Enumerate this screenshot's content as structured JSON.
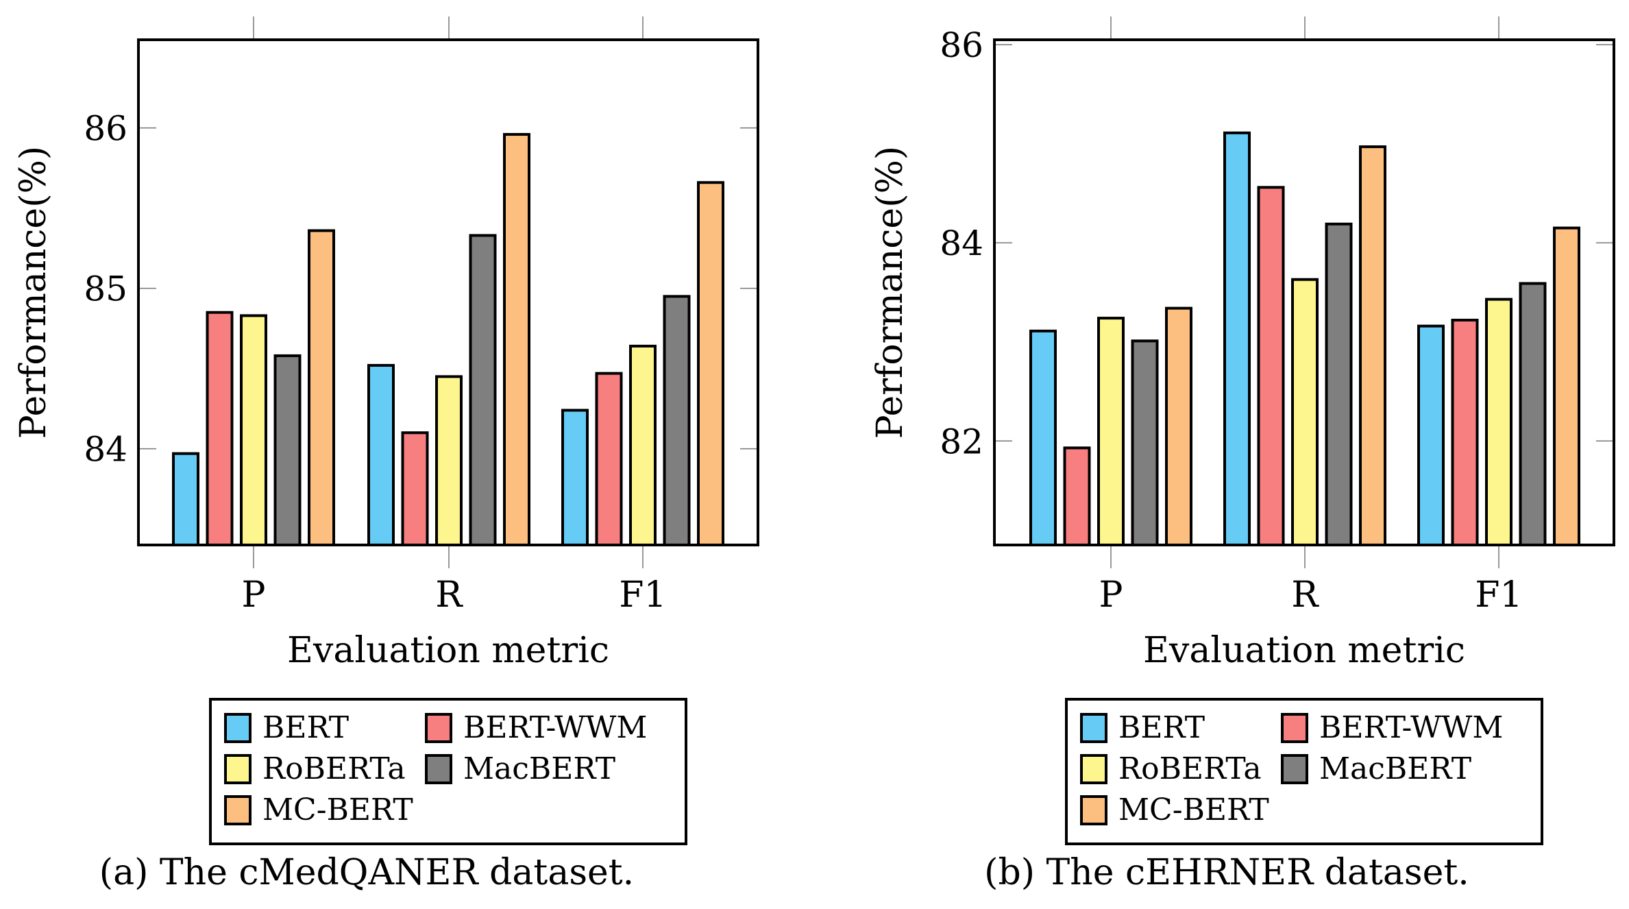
{
  "series_colors": {
    "BERT": "#66CCF5",
    "BERT-WWM": "#F77F80",
    "RoBERTa": "#FDF58E",
    "MacBERT": "#7F7F7F",
    "MC-BERT": "#FDBF80"
  },
  "chart_data": [
    {
      "type": "bar",
      "caption": "(a) The cMedQANER dataset.",
      "xlabel": "Evaluation metric",
      "ylabel": "Performance(%)",
      "categories": [
        "P",
        "R",
        "F1"
      ],
      "ylim": [
        83.4,
        86.55
      ],
      "yticks": [
        84,
        85,
        86
      ],
      "legend": [
        "BERT",
        "BERT-WWM",
        "RoBERTa",
        "MacBERT",
        "MC-BERT"
      ],
      "series": [
        {
          "name": "BERT",
          "values": [
            83.97,
            84.52,
            84.24
          ]
        },
        {
          "name": "BERT-WWM",
          "values": [
            84.85,
            84.1,
            84.47
          ]
        },
        {
          "name": "RoBERTa",
          "values": [
            84.83,
            84.45,
            84.64
          ]
        },
        {
          "name": "MacBERT",
          "values": [
            84.58,
            85.33,
            84.95
          ]
        },
        {
          "name": "MC-BERT",
          "values": [
            85.36,
            85.96,
            85.66
          ]
        }
      ]
    },
    {
      "type": "bar",
      "caption": "(b) The cEHRNER dataset.",
      "xlabel": "Evaluation metric",
      "ylabel": "Performance(%)",
      "categories": [
        "P",
        "R",
        "F1"
      ],
      "ylim": [
        80.95,
        86.05
      ],
      "yticks": [
        82,
        84,
        86
      ],
      "legend": [
        "BERT",
        "BERT-WWM",
        "RoBERTa",
        "MacBERT",
        "MC-BERT"
      ],
      "series": [
        {
          "name": "BERT",
          "values": [
            83.11,
            85.11,
            83.16
          ]
        },
        {
          "name": "BERT-WWM",
          "values": [
            81.93,
            84.56,
            83.22
          ]
        },
        {
          "name": "RoBERTa",
          "values": [
            83.24,
            83.63,
            83.43
          ]
        },
        {
          "name": "MacBERT",
          "values": [
            83.01,
            84.19,
            83.59
          ]
        },
        {
          "name": "MC-BERT",
          "values": [
            83.34,
            84.97,
            84.15
          ]
        }
      ]
    }
  ]
}
